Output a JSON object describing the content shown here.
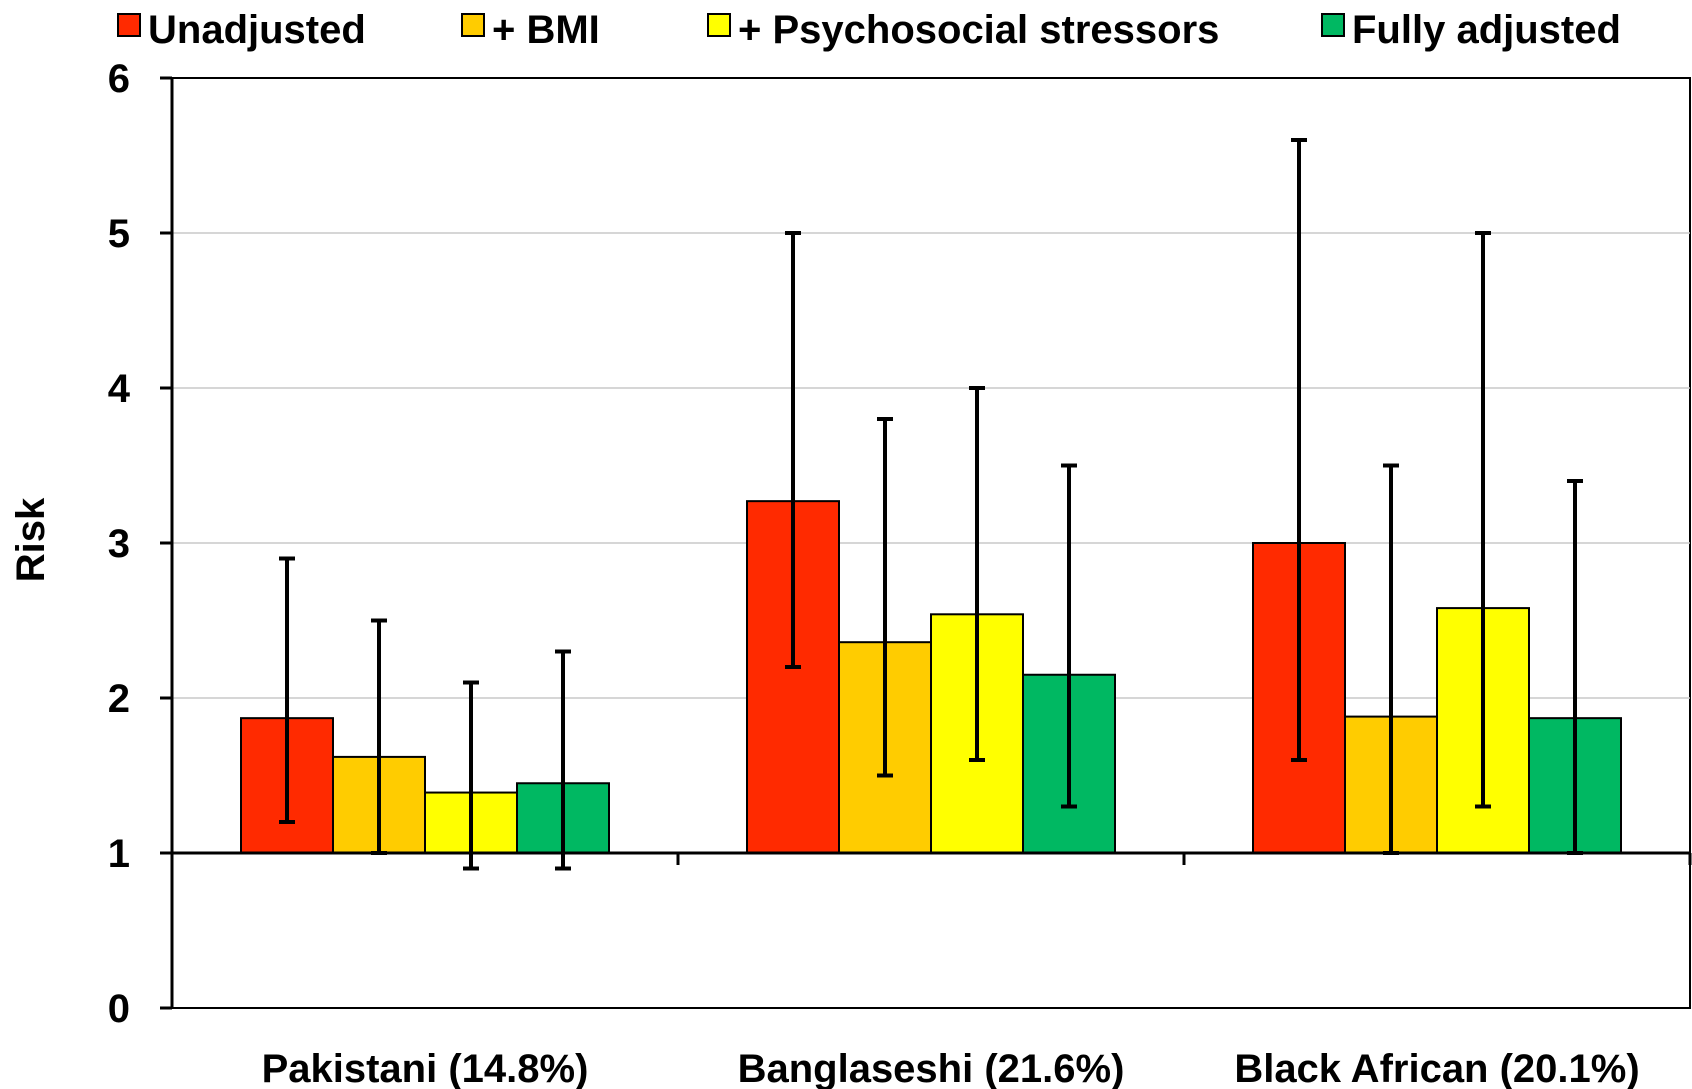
{
  "chart_data": {
    "type": "bar",
    "title": "",
    "xlabel": "",
    "ylabel": "Risk",
    "ylim": [
      0,
      6
    ],
    "yticks": [
      "0",
      "1",
      "2",
      "3",
      "4",
      "5",
      "6"
    ],
    "baseline": 1,
    "grid": true,
    "legend_position": "top",
    "categories": [
      "Pakistani (14.8%)",
      "Banglaseshi (21.6%)",
      "Black African (20.1%)"
    ],
    "series": [
      {
        "name": "Unadjusted",
        "color": "#ff2a00",
        "values": [
          1.87,
          3.27,
          3.0
        ],
        "error_low": [
          1.2,
          2.2,
          1.6
        ],
        "error_high": [
          2.9,
          5.0,
          5.6
        ]
      },
      {
        "name": "+ BMI",
        "color": "#ffcc00",
        "values": [
          1.62,
          2.36,
          1.88
        ],
        "error_low": [
          1.0,
          1.5,
          1.0
        ],
        "error_high": [
          2.5,
          3.8,
          3.5
        ]
      },
      {
        "name": "+ Psychosocial stressors",
        "color": "#ffff00",
        "values": [
          1.39,
          2.54,
          2.58
        ],
        "error_low": [
          0.9,
          1.6,
          1.3
        ],
        "error_high": [
          2.1,
          4.0,
          5.0
        ]
      },
      {
        "name": "Fully adjusted",
        "color": "#00b862",
        "values": [
          1.45,
          2.15,
          1.87
        ],
        "error_low": [
          0.9,
          1.3,
          1.0
        ],
        "error_high": [
          2.3,
          3.5,
          3.4
        ]
      }
    ]
  }
}
